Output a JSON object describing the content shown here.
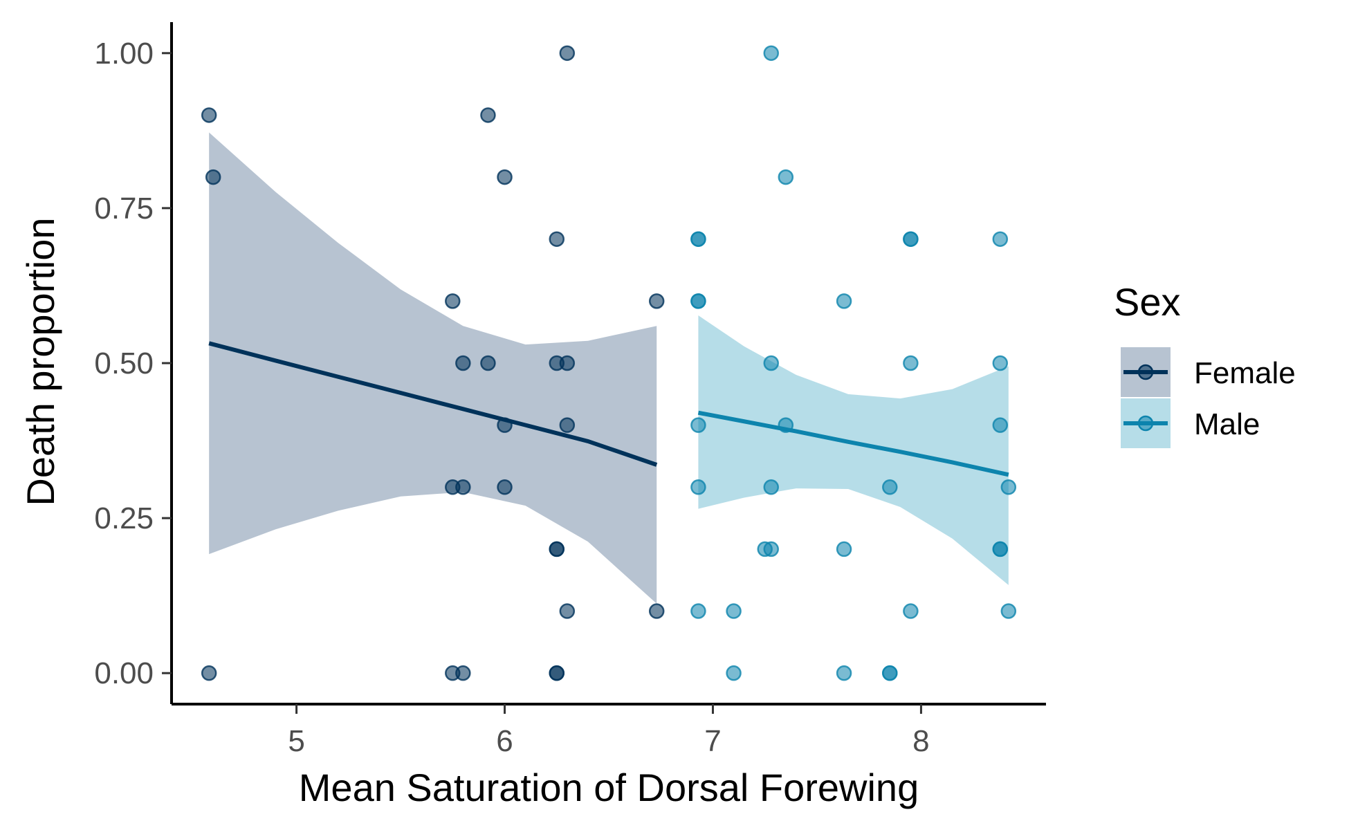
{
  "chart_data": {
    "type": "scatter",
    "title": "",
    "xlabel": "Mean Saturation of Dorsal Forewing",
    "ylabel": "Death proportion",
    "xlim": [
      4.4,
      8.6
    ],
    "ylim": [
      -0.05,
      1.05
    ],
    "xticks": [
      5,
      6,
      7,
      8
    ],
    "xtick_labels": [
      "5",
      "6",
      "7",
      "8"
    ],
    "yticks": [
      0,
      0.25,
      0.5,
      0.75,
      1
    ],
    "ytick_labels": [
      "0.00",
      "0.25",
      "0.50",
      "0.75",
      "1.00"
    ],
    "grid": false,
    "legend": {
      "title": "Sex",
      "placement": "right"
    },
    "series": [
      {
        "name": "Female",
        "color": "#00325a",
        "band_color": "#6f88a3",
        "points": [
          [
            4.58,
            0.9
          ],
          [
            4.6,
            0.8
          ],
          [
            4.58,
            0.0
          ],
          [
            5.75,
            0.6
          ],
          [
            5.8,
            0.5
          ],
          [
            5.75,
            0.3
          ],
          [
            5.8,
            0.3
          ],
          [
            5.75,
            0.0
          ],
          [
            5.8,
            0.0
          ],
          [
            5.92,
            0.9
          ],
          [
            5.92,
            0.5
          ],
          [
            6.0,
            0.8
          ],
          [
            6.0,
            0.4
          ],
          [
            6.0,
            0.3
          ],
          [
            6.25,
            0.7
          ],
          [
            6.25,
            0.5
          ],
          [
            6.3,
            0.5
          ],
          [
            6.3,
            0.4
          ],
          [
            6.25,
            0.2
          ],
          [
            6.25,
            0.2
          ],
          [
            6.3,
            0.1
          ],
          [
            6.25,
            0.0
          ],
          [
            6.25,
            0.0
          ],
          [
            6.3,
            1.0
          ],
          [
            6.73,
            0.6
          ],
          [
            6.73,
            0.1
          ]
        ],
        "fit": {
          "x": [
            4.58,
            4.9,
            5.2,
            5.5,
            5.8,
            6.1,
            6.4,
            6.73
          ],
          "y": [
            0.532,
            0.504,
            0.478,
            0.452,
            0.426,
            0.4,
            0.374,
            0.336
          ],
          "lower": [
            0.192,
            0.232,
            0.262,
            0.285,
            0.292,
            0.27,
            0.212,
            0.112
          ],
          "upper": [
            0.872,
            0.776,
            0.694,
            0.619,
            0.56,
            0.53,
            0.536,
            0.56
          ]
        }
      },
      {
        "name": "Male",
        "color": "#0d84ad",
        "band_color": "#6dbbd1",
        "points": [
          [
            6.93,
            0.7
          ],
          [
            6.93,
            0.7
          ],
          [
            6.93,
            0.6
          ],
          [
            6.93,
            0.6
          ],
          [
            6.93,
            0.4
          ],
          [
            6.93,
            0.3
          ],
          [
            6.93,
            0.1
          ],
          [
            7.1,
            0.1
          ],
          [
            7.1,
            0.0
          ],
          [
            7.25,
            0.2
          ],
          [
            7.28,
            1.0
          ],
          [
            7.28,
            0.5
          ],
          [
            7.28,
            0.3
          ],
          [
            7.28,
            0.2
          ],
          [
            7.35,
            0.8
          ],
          [
            7.35,
            0.4
          ],
          [
            7.63,
            0.6
          ],
          [
            7.63,
            0.2
          ],
          [
            7.63,
            0.0
          ],
          [
            7.85,
            0.3
          ],
          [
            7.85,
            0.0
          ],
          [
            7.85,
            0.0
          ],
          [
            7.95,
            0.7
          ],
          [
            7.95,
            0.7
          ],
          [
            7.95,
            0.5
          ],
          [
            7.95,
            0.1
          ],
          [
            8.38,
            0.7
          ],
          [
            8.38,
            0.5
          ],
          [
            8.38,
            0.4
          ],
          [
            8.38,
            0.2
          ],
          [
            8.38,
            0.2
          ],
          [
            8.42,
            0.3
          ],
          [
            8.42,
            0.1
          ]
        ],
        "fit": {
          "x": [
            6.93,
            7.15,
            7.4,
            7.65,
            7.9,
            8.15,
            8.42
          ],
          "y": [
            0.42,
            0.406,
            0.39,
            0.373,
            0.357,
            0.34,
            0.32
          ],
          "lower": [
            0.265,
            0.283,
            0.298,
            0.297,
            0.268,
            0.217,
            0.142
          ],
          "upper": [
            0.577,
            0.527,
            0.481,
            0.45,
            0.443,
            0.458,
            0.495
          ]
        }
      }
    ]
  }
}
